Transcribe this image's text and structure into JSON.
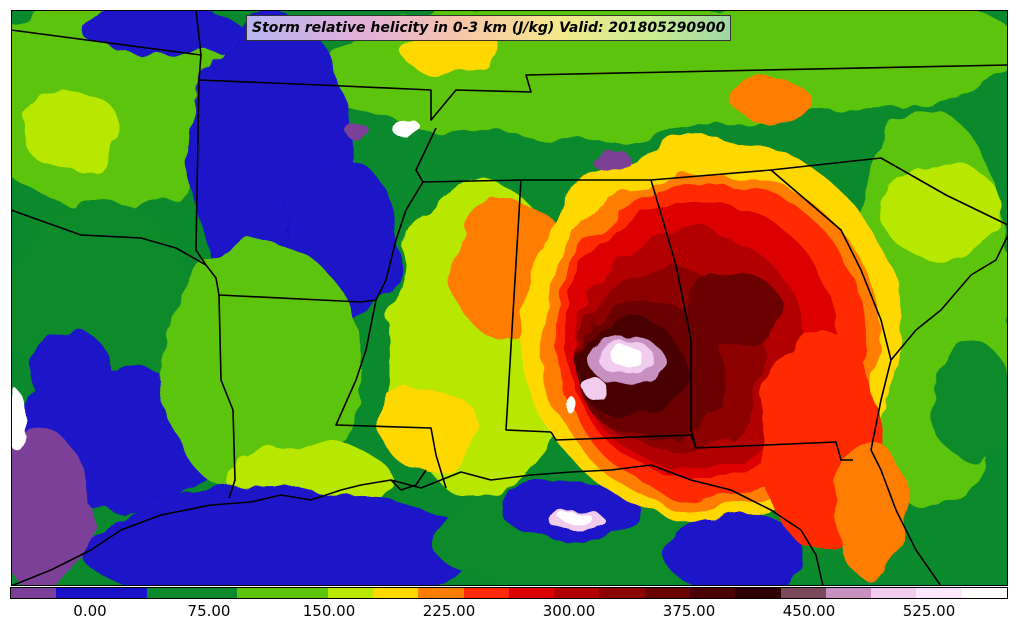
{
  "title": "Storm relative helicity in 0-3 km (J/kg) Valid: 201805290900",
  "colorbar": {
    "colors": [
      "#7b3f98",
      "#1a12c8",
      "#1a12c8",
      "#0a8a2c",
      "#0a8a2c",
      "#5cc40c",
      "#5cc40c",
      "#b8e800",
      "#ffd800",
      "#ff7d00",
      "#ff2a00",
      "#dd0000",
      "#b20000",
      "#8c0000",
      "#6a0000",
      "#4a0000",
      "#2e0000",
      "#7a4a5c",
      "#c890c0",
      "#f2ccee",
      "#ffe6ff",
      "#ffffff"
    ],
    "ticks": [
      {
        "label": "0.00"
      },
      {
        "label": "75.00"
      },
      {
        "label": "150.00"
      },
      {
        "label": "225.00"
      },
      {
        "label": "300.00"
      },
      {
        "label": "375.00"
      },
      {
        "label": "450.00"
      },
      {
        "label": "525.00"
      }
    ]
  }
}
